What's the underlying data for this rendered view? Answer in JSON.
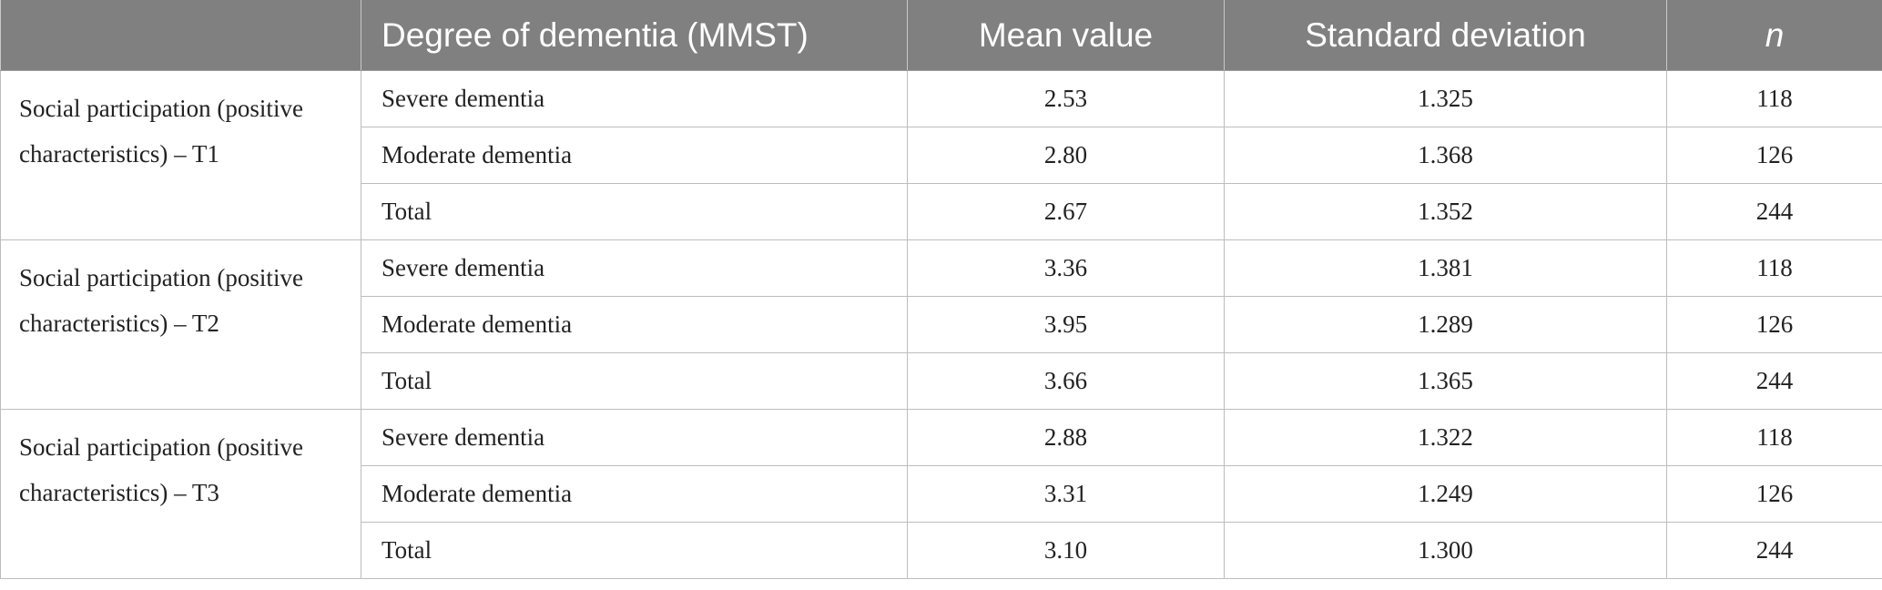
{
  "table": {
    "headers": [
      "",
      "Degree of dementia (MMST)",
      "Mean value",
      "Standard deviation",
      "n"
    ],
    "groups": [
      {
        "label": "Social participation (positive characteristics) – T1",
        "rows": [
          {
            "level": "Severe dementia",
            "mean": "2.53",
            "sd": "1.325",
            "n": "118"
          },
          {
            "level": "Moderate dementia",
            "mean": "2.80",
            "sd": "1.368",
            "n": "126"
          },
          {
            "level": "Total",
            "mean": "2.67",
            "sd": "1.352",
            "n": "244"
          }
        ]
      },
      {
        "label": "Social participation (positive characteristics) – T2",
        "rows": [
          {
            "level": "Severe dementia",
            "mean": "3.36",
            "sd": "1.381",
            "n": "118"
          },
          {
            "level": "Moderate dementia",
            "mean": "3.95",
            "sd": "1.289",
            "n": "126"
          },
          {
            "level": "Total",
            "mean": "3.66",
            "sd": "1.365",
            "n": "244"
          }
        ]
      },
      {
        "label": "Social participation (positive characteristics) – T3",
        "rows": [
          {
            "level": "Severe dementia",
            "mean": "2.88",
            "sd": "1.322",
            "n": "118"
          },
          {
            "level": "Moderate dementia",
            "mean": "3.31",
            "sd": "1.249",
            "n": "126"
          },
          {
            "level": "Total",
            "mean": "3.10",
            "sd": "1.300",
            "n": "244"
          }
        ]
      }
    ]
  },
  "colors": {
    "header_bg": "#808080",
    "header_text": "#ffffff",
    "grid": "#bdbdbd"
  }
}
